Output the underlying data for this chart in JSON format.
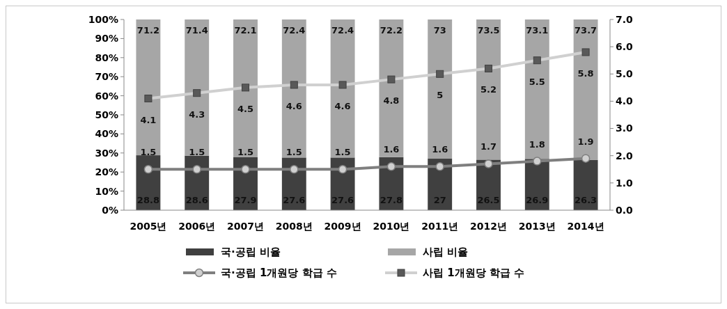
{
  "chart_data": {
    "type": "bar",
    "stacked": true,
    "categories": [
      "2005년",
      "2006년",
      "2007년",
      "2008년",
      "2009년",
      "2010년",
      "2011년",
      "2012년",
      "2013년",
      "2014년"
    ],
    "series": [
      {
        "name": "국·공립 비율",
        "color": "#404040",
        "values": [
          28.8,
          28.6,
          27.9,
          27.6,
          27.6,
          27.8,
          27,
          26.5,
          26.9,
          26.3
        ]
      },
      {
        "name": "사립 비율",
        "color": "#a6a6a6",
        "values": [
          71.2,
          71.4,
          72.1,
          72.4,
          72.4,
          72.2,
          73,
          73.5,
          73.1,
          73.7
        ]
      },
      {
        "name": "국·공립 1개원당 학급 수",
        "type": "line",
        "axis": "y2",
        "marker": "circle",
        "color": "#7f7f7f",
        "values": [
          1.5,
          1.5,
          1.5,
          1.5,
          1.5,
          1.6,
          1.6,
          1.7,
          1.8,
          1.9
        ]
      },
      {
        "name": "사립 1개원당 학급 수",
        "type": "line",
        "axis": "y2",
        "marker": "square",
        "color": "#d0d0d0",
        "values": [
          4.1,
          4.3,
          4.5,
          4.6,
          4.6,
          4.8,
          5,
          5.2,
          5.5,
          5.8
        ]
      }
    ],
    "ylim": [
      0,
      100
    ],
    "yticks": [
      {
        "value": 0,
        "label": "0%"
      },
      {
        "value": 10,
        "label": "10%"
      },
      {
        "value": 20,
        "label": "20%"
      },
      {
        "value": 30,
        "label": "30%"
      },
      {
        "value": 40,
        "label": "40%"
      },
      {
        "value": 50,
        "label": "50%"
      },
      {
        "value": 60,
        "label": "60%"
      },
      {
        "value": 70,
        "label": "70%"
      },
      {
        "value": 80,
        "label": "80%"
      },
      {
        "value": 90,
        "label": "90%"
      },
      {
        "value": 100,
        "label": "100%"
      }
    ],
    "y2lim": [
      0,
      7
    ],
    "y2ticks": [
      {
        "value": 0,
        "label": "0.0"
      },
      {
        "value": 1,
        "label": "1.0"
      },
      {
        "value": 2,
        "label": "2.0"
      },
      {
        "value": 3,
        "label": "3.0"
      },
      {
        "value": 4,
        "label": "4.0"
      },
      {
        "value": 5,
        "label": "5.0"
      },
      {
        "value": 6,
        "label": "6.0"
      },
      {
        "value": 7,
        "label": "7.0"
      }
    ],
    "data_labels": true,
    "legend": "bottom",
    "grid": false
  }
}
